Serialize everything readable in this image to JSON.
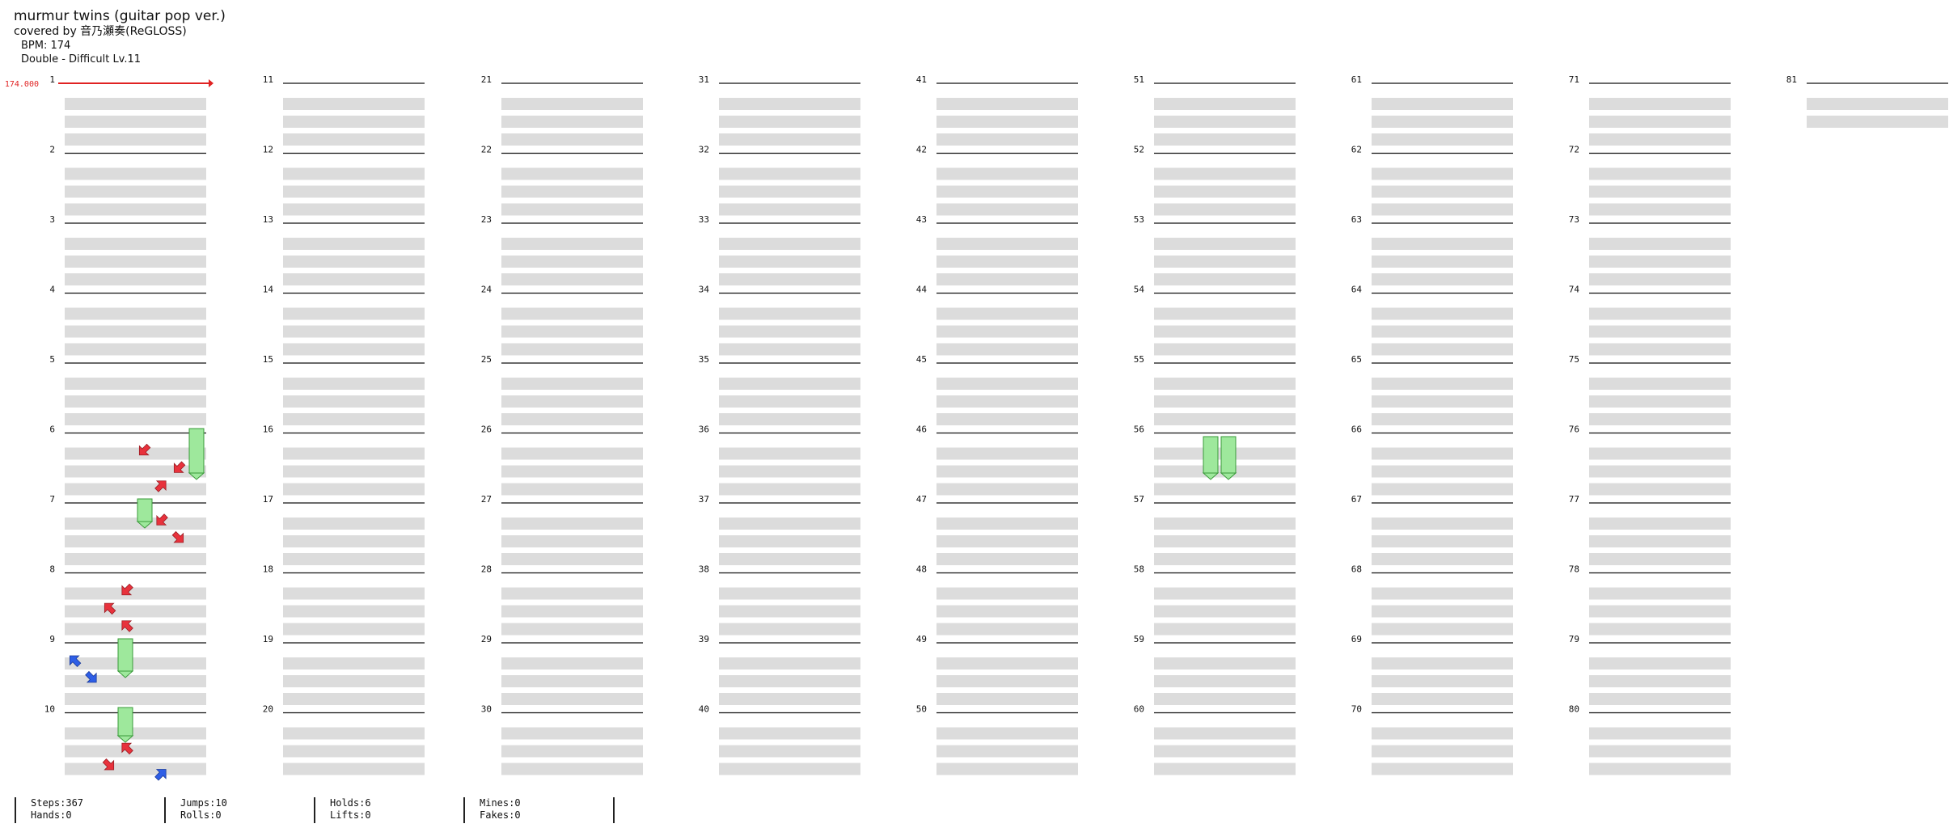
{
  "header": {
    "title": "murmur twins (guitar pop ver.)",
    "subtitle": "covered by 音乃瀬奏(ReGLOSS)",
    "bpm": "BPM: 174",
    "difficulty": "Double - Difficult  Lv.11"
  },
  "bpm_marker": "174.000",
  "measures": [
    "1",
    "2",
    "3",
    "4",
    "5",
    "6",
    "7",
    "8",
    "9",
    "10",
    "11",
    "12",
    "13",
    "14",
    "15",
    "16",
    "17",
    "18",
    "19",
    "20",
    "21",
    "22",
    "23",
    "24",
    "25",
    "26",
    "27",
    "28",
    "29",
    "30",
    "31",
    "32",
    "33",
    "34",
    "35",
    "36",
    "37",
    "38",
    "39",
    "40",
    "41",
    "42",
    "43",
    "44",
    "45",
    "46",
    "47",
    "48",
    "49",
    "50",
    "51",
    "52",
    "53",
    "54",
    "55",
    "56",
    "57",
    "58",
    "59",
    "60",
    "61",
    "62",
    "63",
    "64",
    "65",
    "66",
    "67",
    "68",
    "69",
    "70",
    "71",
    "72",
    "73",
    "74",
    "75",
    "76",
    "77",
    "78",
    "79",
    "80",
    "81"
  ],
  "stats": {
    "steps": "Steps:367",
    "hands": "Hands:0",
    "jumps": "Jumps:10",
    "rolls": "Rolls:0",
    "holds": "Holds:6",
    "lifts": "Lifts:0",
    "mines": "Mines:0",
    "fakes": "Fakes:0"
  },
  "colors": {
    "red_note": "#e8323c",
    "blue_note": "#2e5ee6",
    "yellow_note": "#f5e23a",
    "hold_body": "#9ee89c",
    "row_shade": "#dcdcdc",
    "bpm_line": "#e02222"
  },
  "notes": [
    {
      "m": 6,
      "b": 0.25,
      "lane": 4,
      "dir": "dl",
      "color": "red"
    },
    {
      "m": 6,
      "b": 0.5,
      "lane": 6,
      "dir": "dl",
      "color": "red"
    },
    {
      "m": 6,
      "b": 0.75,
      "lane": 5,
      "dir": "ur",
      "color": "red"
    },
    {
      "m": 7,
      "b": 0.25,
      "lane": 5,
      "dir": "dl",
      "color": "red"
    },
    {
      "m": 7,
      "b": 0.5,
      "lane": 6,
      "dir": "dr",
      "color": "red"
    },
    {
      "m": 8,
      "b": 0.25,
      "lane": 3,
      "dir": "dl",
      "color": "red"
    },
    {
      "m": 8,
      "b": 0.5,
      "lane": 2,
      "dir": "ul",
      "color": "red"
    },
    {
      "m": 8,
      "b": 0.75,
      "lane": 3,
      "dir": "ul",
      "color": "red"
    },
    {
      "m": 9,
      "b": 0.25,
      "lane": 0,
      "dir": "ul",
      "color": "blue"
    },
    {
      "m": 9,
      "b": 0.5,
      "lane": 1,
      "dir": "dr",
      "color": "blue"
    },
    {
      "m": 10,
      "b": 0.5,
      "lane": 3,
      "dir": "ul",
      "color": "red"
    },
    {
      "m": 10,
      "b": 0.75,
      "lane": 2,
      "dir": "dr",
      "color": "red"
    },
    {
      "m": 10,
      "b": 0.875,
      "lane": 5,
      "dir": "ur",
      "color": "blue"
    }
  ]
}
